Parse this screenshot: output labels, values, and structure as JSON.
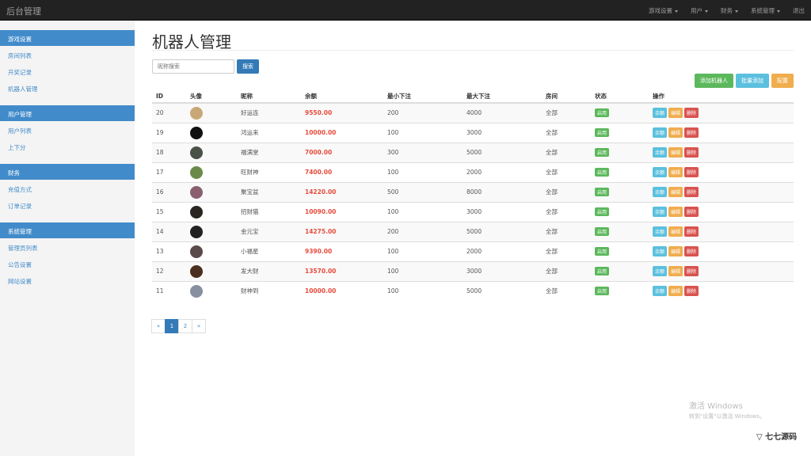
{
  "navbar": {
    "brand": "后台管理",
    "menus": [
      "游戏设置",
      "用户",
      "财务",
      "系统管理"
    ],
    "logout": "退出"
  },
  "sidebar": [
    {
      "title": "游戏设置",
      "items": [
        "房间列表",
        "开奖记录",
        "机器人管理"
      ]
    },
    {
      "title": "用户管理",
      "items": [
        "用户列表",
        "上下分"
      ]
    },
    {
      "title": "财务",
      "items": [
        "充值方式",
        "订单记录"
      ]
    },
    {
      "title": "系统管理",
      "items": [
        "管理员列表",
        "公告设置",
        "网站设置"
      ]
    }
  ],
  "page": {
    "title": "机器人管理",
    "search_placeholder": "昵称搜索",
    "search_button": "搜索",
    "add_robot": "添加机器人",
    "batch_add": "批量添加",
    "config": "配置"
  },
  "table": {
    "headers": [
      "ID",
      "头像",
      "昵称",
      "余额",
      "最小下注",
      "最大下注",
      "房间",
      "状态",
      "操作"
    ],
    "rows": [
      {
        "id": "20",
        "name": "好运连",
        "balance": "9550.00",
        "min": "200",
        "max": "4000",
        "room": "全部",
        "status": "启用",
        "color": "#c9a878"
      },
      {
        "id": "19",
        "name": "鸿运来",
        "balance": "10000.00",
        "min": "100",
        "max": "3000",
        "room": "全部",
        "status": "启用",
        "color": "#111111"
      },
      {
        "id": "18",
        "name": "福满堂",
        "balance": "7000.00",
        "min": "300",
        "max": "5000",
        "room": "全部",
        "status": "启用",
        "color": "#4a5248"
      },
      {
        "id": "17",
        "name": "旺财神",
        "balance": "7400.00",
        "min": "100",
        "max": "2000",
        "room": "全部",
        "status": "启用",
        "color": "#6a8a4a"
      },
      {
        "id": "16",
        "name": "聚宝盆",
        "balance": "14220.00",
        "min": "500",
        "max": "8000",
        "room": "全部",
        "status": "启用",
        "color": "#8a6070"
      },
      {
        "id": "15",
        "name": "招财猫",
        "balance": "10090.00",
        "min": "100",
        "max": "3000",
        "room": "全部",
        "status": "启用",
        "color": "#2a2520"
      },
      {
        "id": "14",
        "name": "金元宝",
        "balance": "14275.00",
        "min": "200",
        "max": "5000",
        "room": "全部",
        "status": "启用",
        "color": "#222222"
      },
      {
        "id": "13",
        "name": "小福星",
        "balance": "9390.00",
        "min": "100",
        "max": "2000",
        "room": "全部",
        "status": "启用",
        "color": "#5a4a4a"
      },
      {
        "id": "12",
        "name": "发大财",
        "balance": "13570.00",
        "min": "100",
        "max": "3000",
        "room": "全部",
        "status": "启用",
        "color": "#4a3020"
      },
      {
        "id": "11",
        "name": "财神到",
        "balance": "10000.00",
        "min": "100",
        "max": "5000",
        "room": "全部",
        "status": "启用",
        "color": "#8890a0"
      }
    ],
    "ops": [
      "余额",
      "编辑",
      "删除"
    ]
  },
  "pagination": {
    "prev": "«",
    "pages": [
      "1",
      "2"
    ],
    "next": "»",
    "current": "1"
  },
  "watermark": {
    "line1": "激活 Windows",
    "line2": "转到\"设置\"以激活 Windows。",
    "logo": "七七源码"
  },
  "colors": {
    "primary": "#428bca",
    "success": "#5cb85c",
    "info": "#5bc0de",
    "warning": "#f0ad4e",
    "danger": "#d9534f"
  }
}
